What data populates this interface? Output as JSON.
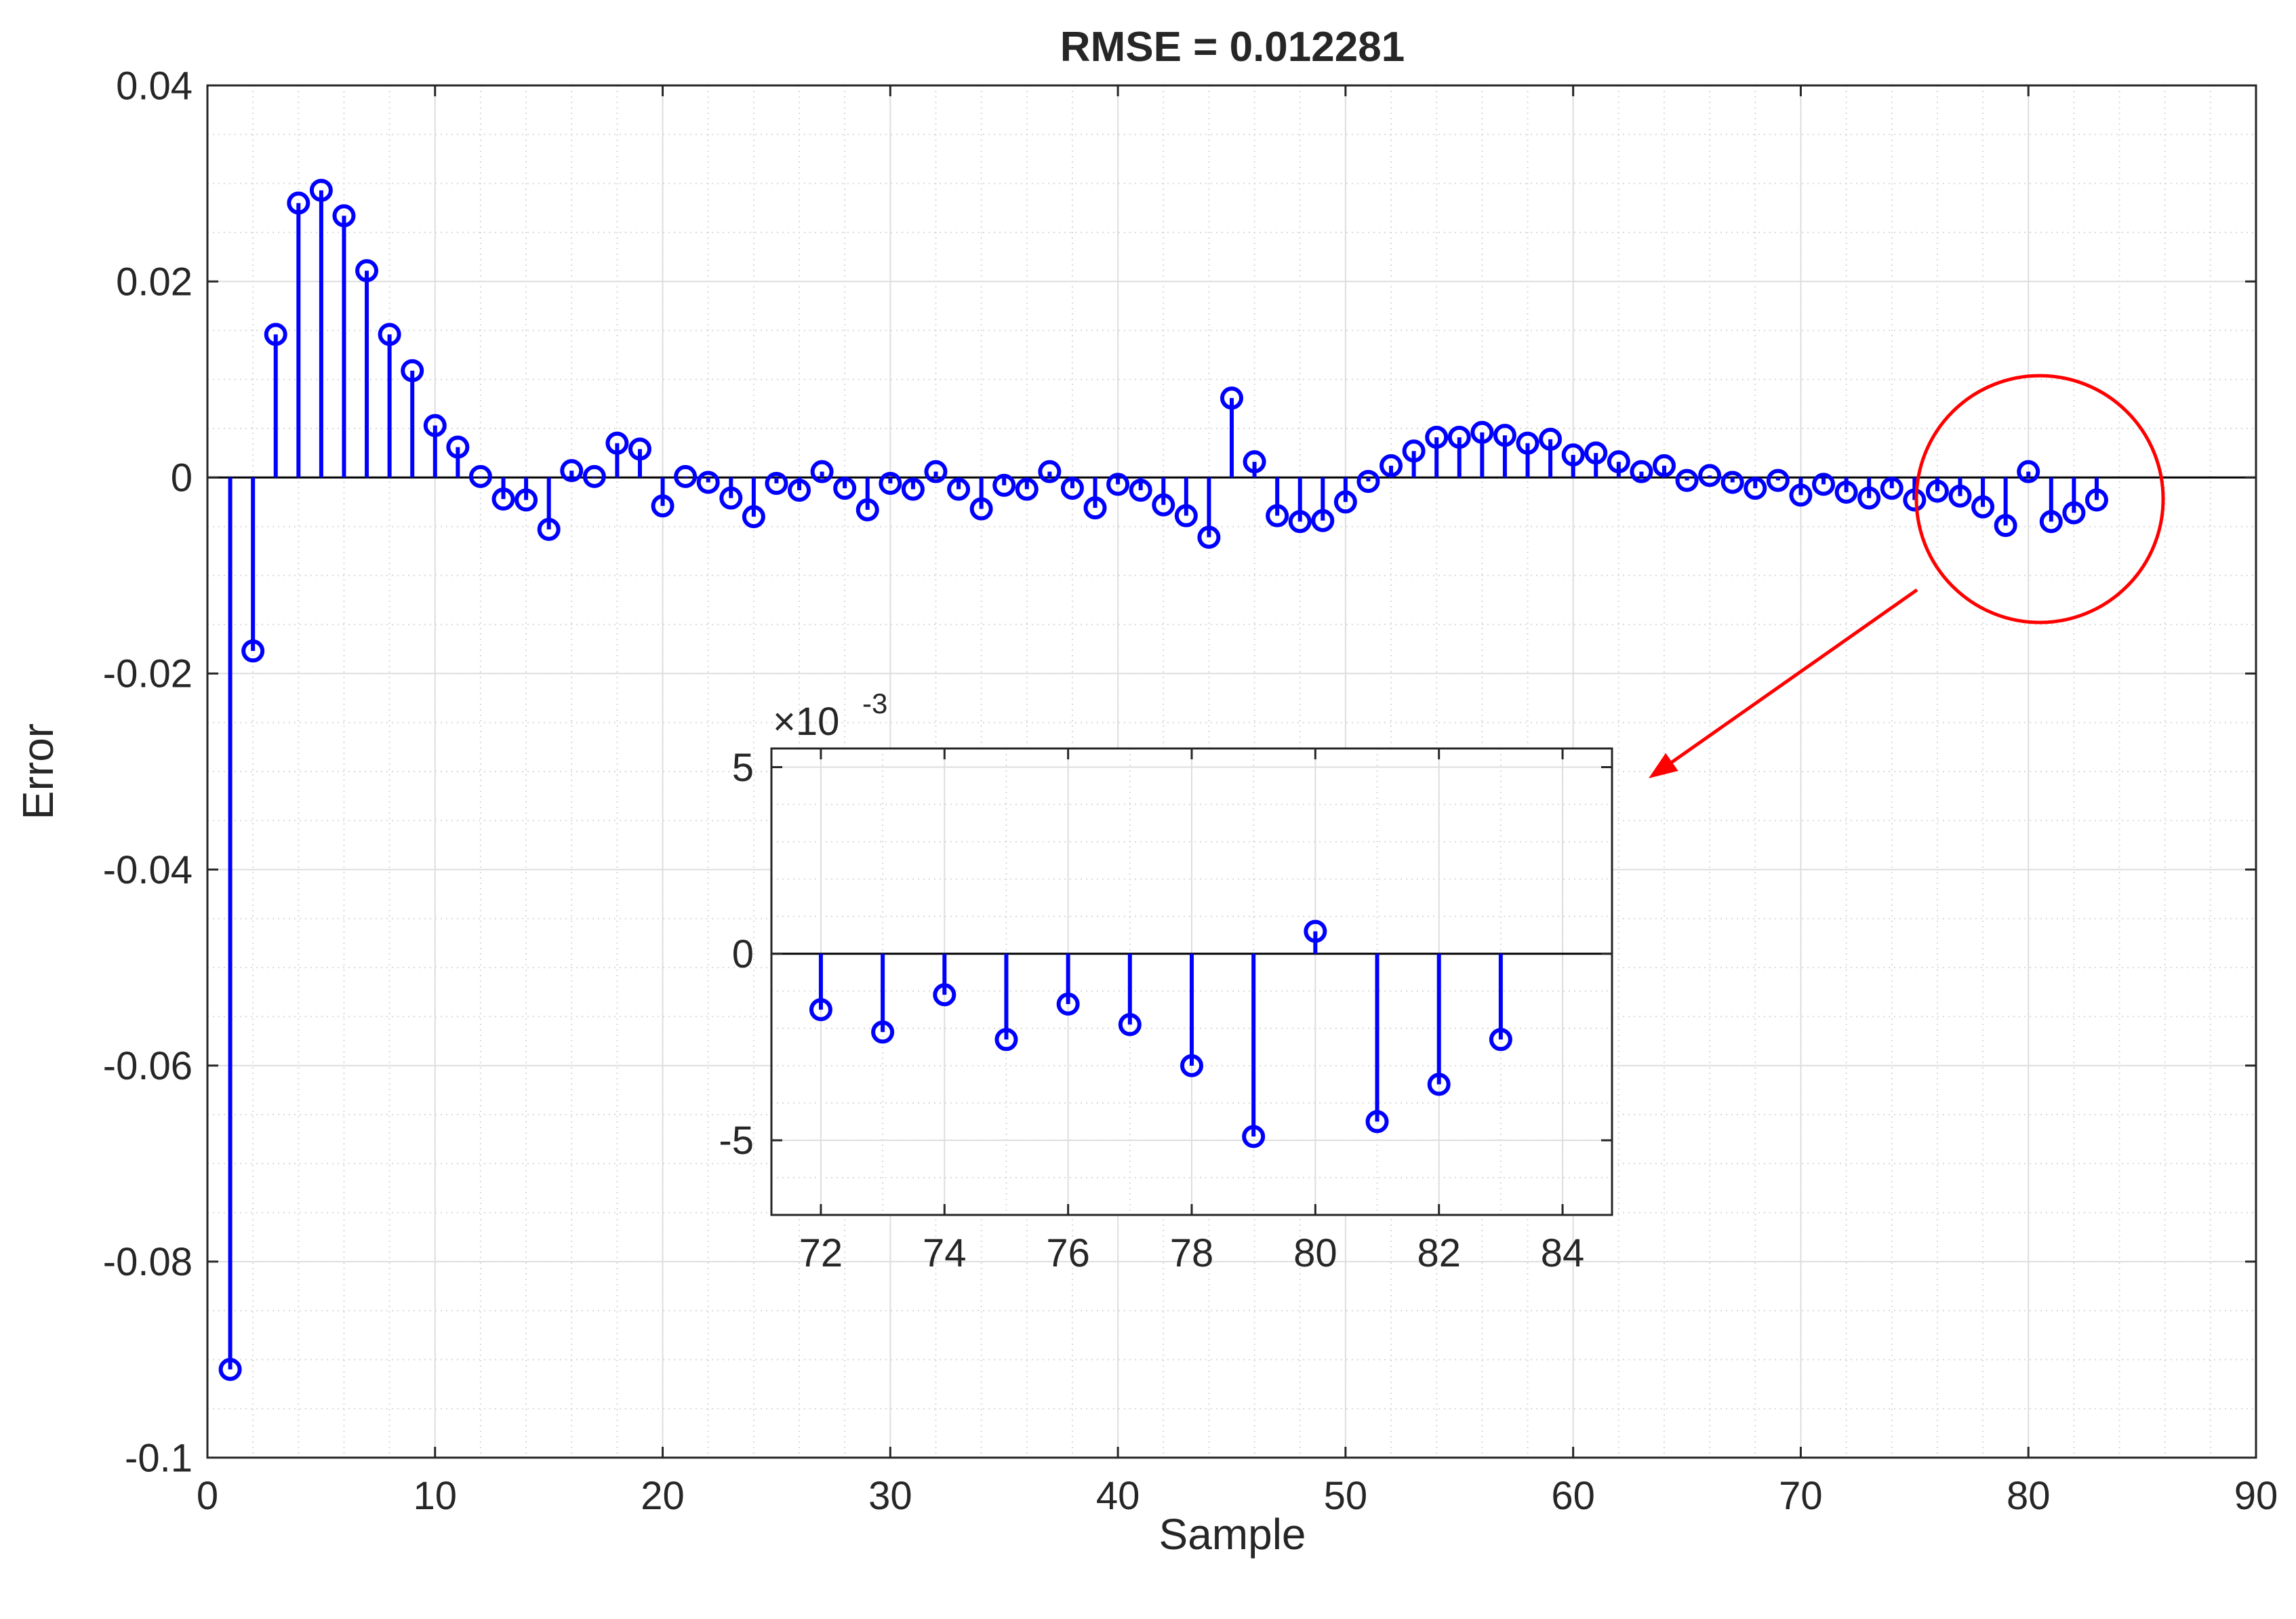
{
  "chart_data": [
    {
      "type": "stem",
      "title": "RMSE = 0.012281",
      "xlabel": "Sample",
      "ylabel": "Error",
      "xlim": [
        0,
        90
      ],
      "ylim": [
        -0.1,
        0.04
      ],
      "xticks": [
        0,
        10,
        20,
        30,
        40,
        50,
        60,
        70,
        80,
        90
      ],
      "xtick_labels": [
        "0",
        "10",
        "20",
        "30",
        "40",
        "50",
        "60",
        "70",
        "80",
        "90"
      ],
      "yticks": [
        -0.1,
        -0.08,
        -0.06,
        -0.04,
        -0.02,
        0,
        0.02,
        0.04
      ],
      "ytick_labels": [
        "-0.1",
        "-0.08",
        "-0.06",
        "-0.04",
        "-0.02",
        "0",
        "0.02",
        "0.04"
      ],
      "grid": "on",
      "minor_grid": "on",
      "series_color": "#0000ff",
      "x": [
        1,
        2,
        3,
        4,
        5,
        6,
        7,
        8,
        9,
        10,
        11,
        12,
        13,
        14,
        15,
        16,
        17,
        18,
        19,
        20,
        21,
        22,
        23,
        24,
        25,
        26,
        27,
        28,
        29,
        30,
        31,
        32,
        33,
        34,
        35,
        36,
        37,
        38,
        39,
        40,
        41,
        42,
        43,
        44,
        45,
        46,
        47,
        48,
        49,
        50,
        51,
        52,
        53,
        54,
        55,
        56,
        57,
        58,
        59,
        60,
        61,
        62,
        63,
        64,
        65,
        66,
        67,
        68,
        69,
        70,
        71,
        72,
        73,
        74,
        75,
        76,
        77,
        78,
        79,
        80,
        81,
        82,
        83
      ],
      "values": [
        -0.091,
        -0.0177,
        0.0146,
        0.028,
        0.0293,
        0.0267,
        0.0211,
        0.0146,
        0.0109,
        0.0053,
        0.0031,
        0.0001,
        -0.0022,
        -0.0023,
        -0.0053,
        0.0007,
        0.0001,
        0.0035,
        0.0029,
        -0.0029,
        0.0001,
        -0.0005,
        -0.0021,
        -0.004,
        -0.0006,
        -0.0013,
        0.0006,
        -0.0011,
        -0.0033,
        -0.0006,
        -0.0012,
        0.0006,
        -0.0012,
        -0.0032,
        -0.0008,
        -0.0012,
        0.0006,
        -0.0011,
        -0.0031,
        -0.0007,
        -0.0013,
        -0.0028,
        -0.0039,
        -0.0061,
        0.0081,
        0.0016,
        -0.0039,
        -0.0045,
        -0.0044,
        -0.0025,
        -0.0004,
        0.0012,
        0.0027,
        0.0041,
        0.0041,
        0.0046,
        0.0043,
        0.0035,
        0.0039,
        0.0023,
        0.0025,
        0.0016,
        0.0006,
        0.0012,
        -0.0003,
        0.0002,
        -0.0005,
        -0.0011,
        -0.0003,
        -0.0018,
        -0.0007,
        -0.0015,
        -0.0021,
        -0.0011,
        -0.0023,
        -0.0014,
        -0.0019,
        -0.003,
        -0.0049,
        0.0006,
        -0.0045,
        -0.0036,
        -0.0023
      ]
    },
    {
      "type": "stem",
      "title": "",
      "scale_label": "×10",
      "scale_exponent": "-3",
      "xlabel": "",
      "ylabel": "",
      "xlim": [
        71.2,
        84.8
      ],
      "ylim": [
        -7,
        5.5
      ],
      "xticks": [
        72,
        74,
        76,
        78,
        80,
        82,
        84
      ],
      "xtick_labels": [
        "72",
        "74",
        "76",
        "78",
        "80",
        "82",
        "84"
      ],
      "yticks": [
        -5,
        0,
        5
      ],
      "ytick_labels": [
        "-5",
        "0",
        "5"
      ],
      "grid": "on",
      "minor_grid": "on",
      "series_color": "#0000ff",
      "x": [
        72,
        73,
        74,
        75,
        76,
        77,
        78,
        79,
        80,
        81,
        82,
        83
      ],
      "values": [
        -1.5,
        -2.1,
        -1.1,
        -2.3,
        -1.35,
        -1.9,
        -3.0,
        -4.9,
        0.6,
        -4.5,
        -3.5,
        -2.3
      ]
    }
  ],
  "annotation": {
    "highlight_color": "#ff0000",
    "highlight_center_data": [
      80.5,
      -0.0022
    ]
  }
}
